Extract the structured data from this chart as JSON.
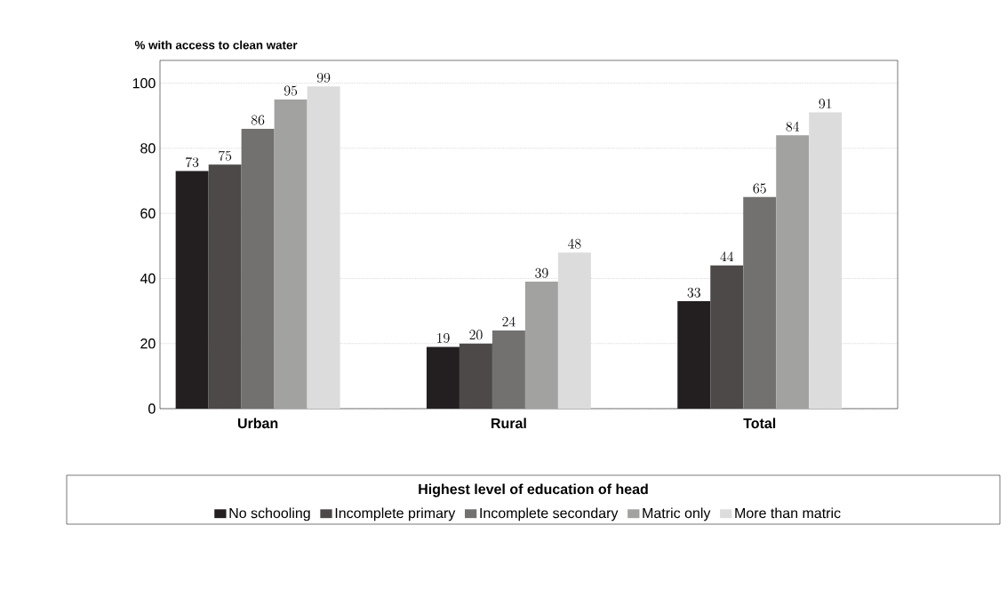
{
  "chart_data": {
    "type": "bar",
    "ylabel": "% with access to clean water",
    "legend_title": "Highest level of education of head",
    "categories": [
      "Urban",
      "Rural",
      "Total"
    ],
    "series": [
      {
        "name": "No schooling",
        "color": "#231f20",
        "values": [
          73,
          19,
          33
        ]
      },
      {
        "name": "Incomplete primary",
        "color": "#4d4948",
        "values": [
          75,
          20,
          44
        ]
      },
      {
        "name": "Incomplete secondary",
        "color": "#727170",
        "values": [
          86,
          24,
          65
        ]
      },
      {
        "name": "Matric only",
        "color": "#a2a3a0",
        "values": [
          95,
          39,
          84
        ]
      },
      {
        "name": "More than matric",
        "color": "#dcdcdc",
        "values": [
          99,
          48,
          91
        ]
      }
    ],
    "ylim": [
      0,
      107
    ],
    "yticks": [
      0,
      20,
      40,
      60,
      80,
      100
    ],
    "grid": "y",
    "data_labels": true,
    "legend": "bottom"
  }
}
